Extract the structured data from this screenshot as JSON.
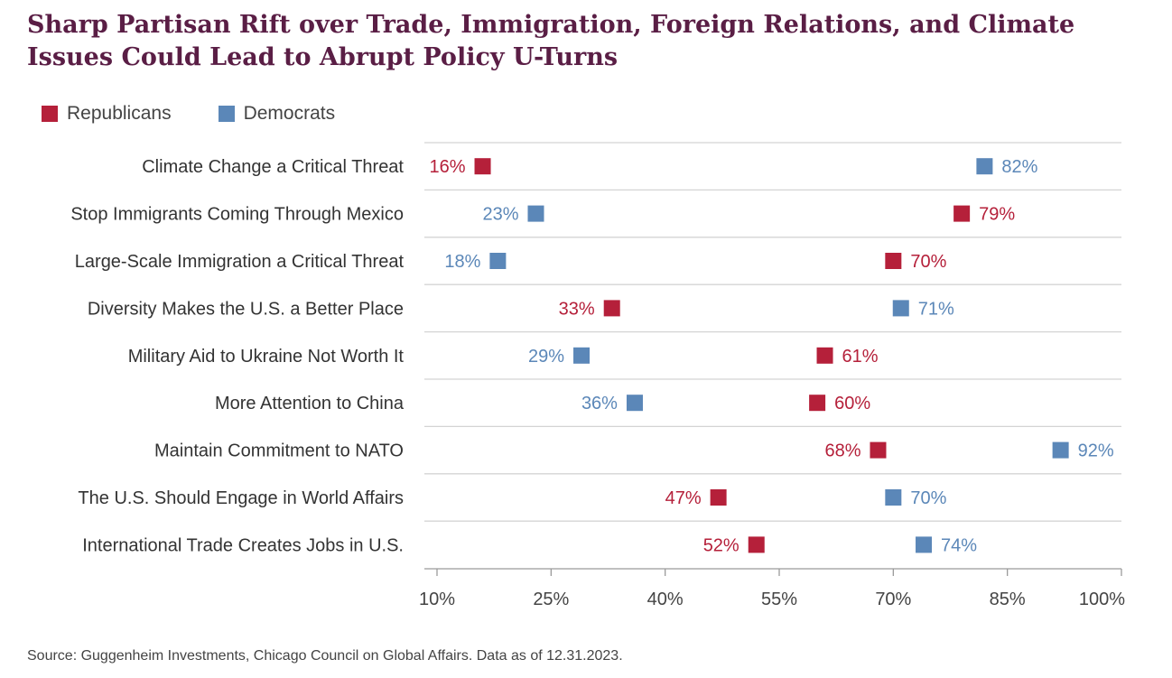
{
  "chart_data": {
    "type": "scatter",
    "title": "Sharp Partisan Rift over Trade, Immigration, Foreign Relations, and Climate Issues Could Lead to Abrupt Policy U-Turns",
    "legend": {
      "position": "top-left"
    },
    "series": [
      {
        "name": "Republicans",
        "color": "#b5203a"
      },
      {
        "name": "Democrats",
        "color": "#5b87b8"
      }
    ],
    "categories": [
      "Climate Change a Critical Threat",
      "Stop Immigrants Coming Through Mexico",
      "Large-Scale Immigration a Critical Threat",
      "Diversity Makes the U.S. a Better Place",
      "Military Aid to Ukraine Not Worth It",
      "More Attention to China",
      "Maintain Commitment to NATO",
      "The U.S. Should Engage in World Affairs",
      "International Trade Creates Jobs in U.S."
    ],
    "rows": [
      {
        "rep": 16,
        "dem": 82,
        "rep_label": "16%",
        "dem_label": "82%"
      },
      {
        "rep": 79,
        "dem": 23,
        "rep_label": "79%",
        "dem_label": "23%"
      },
      {
        "rep": 70,
        "dem": 18,
        "rep_label": "70%",
        "dem_label": "18%"
      },
      {
        "rep": 33,
        "dem": 71,
        "rep_label": "33%",
        "dem_label": "71%"
      },
      {
        "rep": 61,
        "dem": 29,
        "rep_label": "61%",
        "dem_label": "29%"
      },
      {
        "rep": 60,
        "dem": 36,
        "rep_label": "60%",
        "dem_label": "36%"
      },
      {
        "rep": 68,
        "dem": 92,
        "rep_label": "68%",
        "dem_label": "92%"
      },
      {
        "rep": 47,
        "dem": 70,
        "rep_label": "47%",
        "dem_label": "70%"
      },
      {
        "rep": 52,
        "dem": 74,
        "rep_label": "52%",
        "dem_label": "74%"
      }
    ],
    "xlim": [
      10,
      100
    ],
    "xticks": [
      10,
      25,
      40,
      55,
      70,
      85,
      100
    ],
    "xtick_labels": [
      "10%",
      "25%",
      "40%",
      "55%",
      "70%",
      "85%",
      "100%"
    ],
    "grid": "horizontal"
  },
  "source": "Source: Guggenheim Investments, Chicago Council on Global Affairs. Data as of 12.31.2023."
}
